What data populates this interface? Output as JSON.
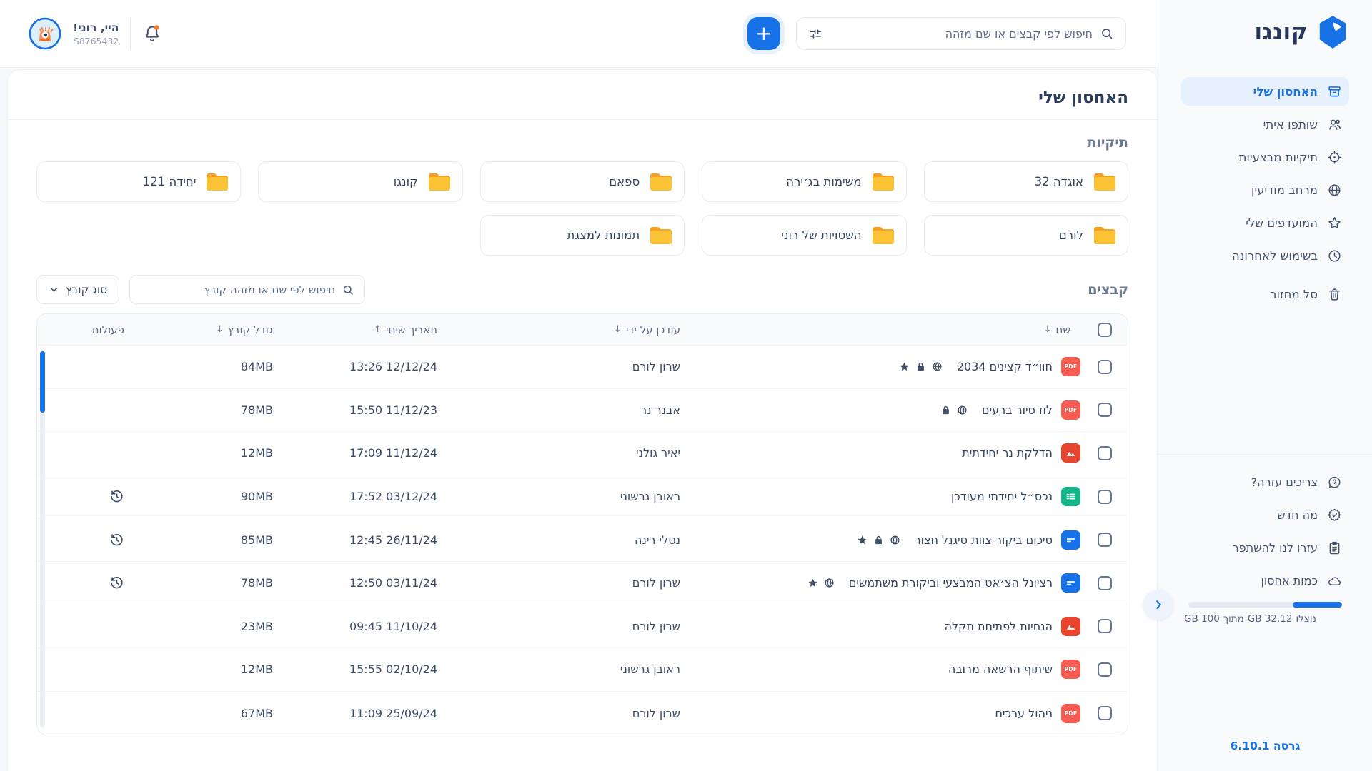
{
  "app": {
    "logo_text": "קונגו",
    "version_label": "גרסה 6.10.1"
  },
  "topbar": {
    "greeting": "היי, רוני!",
    "user_id": "S8765432",
    "search_placeholder": "חיפוש לפי קבצים או שם מזהה",
    "add_label": "+"
  },
  "sidebar": {
    "items": [
      {
        "label": "האחסון שלי",
        "icon": "archive",
        "active": true
      },
      {
        "label": "שותפו איתי",
        "icon": "shared",
        "active": false
      },
      {
        "label": "תיקיות מבצעיות",
        "icon": "target",
        "active": false
      },
      {
        "label": "מרחב מודיעין",
        "icon": "globe",
        "active": false
      },
      {
        "label": "המועדפים שלי",
        "icon": "star",
        "active": false
      },
      {
        "label": "בשימוש לאחרונה",
        "icon": "clock",
        "active": false
      },
      {
        "label": "סל מחזור",
        "icon": "trash",
        "active": false
      }
    ],
    "secondary": [
      {
        "label": "צריכים עזרה?",
        "icon": "help"
      },
      {
        "label": "מה חדש",
        "icon": "whatsnew"
      },
      {
        "label": "עזרו לנו להשתפר",
        "icon": "feedback"
      },
      {
        "label": "כמות אחסון",
        "icon": "cloud"
      }
    ],
    "storage": {
      "used_word": "נוצלו",
      "used_value": "32.12",
      "of_word": "מתוך",
      "total_value": "100",
      "unit": "GB",
      "percent_used": 32
    }
  },
  "main": {
    "title": "האחסון שלי",
    "folders_title": "תיקיות",
    "folders": [
      "אוגדה 32",
      "משימות בג׳ירה",
      "ספאם",
      "קונגו",
      "יחידה 121",
      "לורם",
      "השטויות של רוני",
      "תמונות למצגת"
    ],
    "files_title": "קבצים",
    "files_search_placeholder": "חיפוש לפי שם או מזהה קובץ",
    "file_type_label": "סוג קובץ",
    "table": {
      "headers": [
        {
          "label": "שם",
          "sort": "down"
        },
        {
          "label": "עודכן על ידי",
          "sort": "down"
        },
        {
          "label": "תאריך שינוי",
          "sort": "up"
        },
        {
          "label": "גודל קובץ",
          "sort": "down"
        },
        {
          "label": "פעולות",
          "sort": ""
        }
      ],
      "rows": [
        {
          "name": "חוו״ד קצינים 2034",
          "type": "pdf",
          "badges": [
            "globe-badge",
            "lock",
            "star-badge"
          ],
          "updated_by": "שרון לורם",
          "date": "12/12/24 13:26",
          "size": "84MB",
          "history": false
        },
        {
          "name": "לוז סיור ברעים",
          "type": "pdf",
          "badges": [
            "globe-badge",
            "lock"
          ],
          "updated_by": "אבנר נר",
          "date": "11/12/23 15:50",
          "size": "78MB",
          "history": false
        },
        {
          "name": "הדלקת נר יחידתית",
          "type": "image",
          "badges": [],
          "updated_by": "יאיר גולני",
          "date": "11/12/24 17:09",
          "size": "12MB",
          "history": false
        },
        {
          "name": "נכס״ל יחידתי מעודכן",
          "type": "sheet",
          "badges": [],
          "updated_by": "ראובן גרשוני",
          "date": "03/12/24 17:52",
          "size": "90MB",
          "history": true
        },
        {
          "name": "סיכום ביקור צוות סיגנל חצור",
          "type": "doc",
          "badges": [
            "globe-badge",
            "lock",
            "star-badge"
          ],
          "updated_by": "נטלי רינה",
          "date": "26/11/24 12:45",
          "size": "85MB",
          "history": true
        },
        {
          "name": "רציונל הצ׳אט המבצעי וביקורת משתמשים",
          "type": "doc",
          "badges": [
            "globe-badge",
            "star-badge"
          ],
          "updated_by": "שרון לורם",
          "date": "03/11/24 12:50",
          "size": "78MB",
          "history": true
        },
        {
          "name": "הנחיות לפתיחת תקלה",
          "type": "image",
          "badges": [],
          "updated_by": "שרון לורם",
          "date": "11/10/24 09:45",
          "size": "23MB",
          "history": false
        },
        {
          "name": "שיתוף הרשאה מרובה",
          "type": "pdf",
          "badges": [],
          "updated_by": "ראובן גרשוני",
          "date": "02/10/24 15:55",
          "size": "12MB",
          "history": false
        },
        {
          "name": "ניהול ערכים",
          "type": "pdf",
          "badges": [],
          "updated_by": "שרון לורם",
          "date": "25/09/24 11:09",
          "size": "67MB",
          "history": false
        }
      ]
    }
  },
  "colors": {
    "primary_blue": "#1672e6",
    "active_item_bg": "#e7f1fd",
    "folder_yellow": "#fcc235",
    "folder_tab_orange": "#f5a025",
    "pdf_red": "#f65c51",
    "image_red": "#e8432d",
    "sheet_green": "#17b58a",
    "doc_blue": "#1672e6",
    "notification_orange": "#f9792e"
  }
}
